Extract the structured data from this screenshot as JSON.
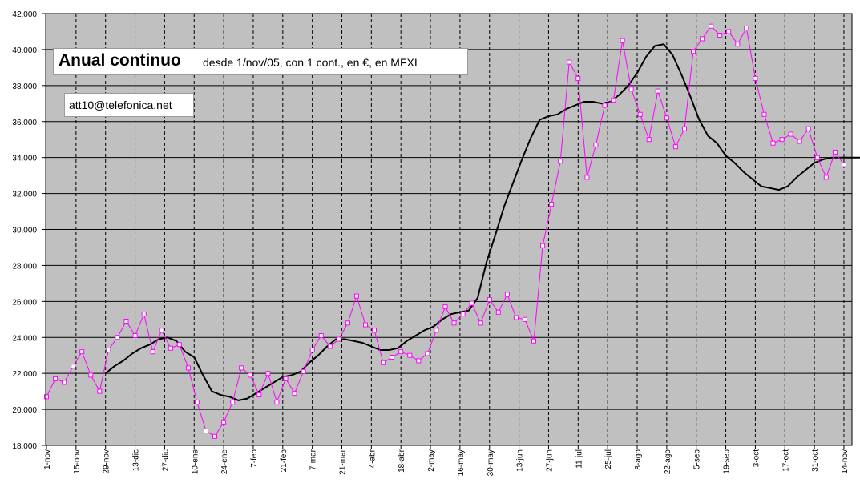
{
  "annotations": {
    "title_main": "Anual continuo",
    "title_sub": "desde 1/nov/05, con  1 cont., en €, en MFXI",
    "email": "att10@telefonica.net"
  },
  "colors": {
    "plot_bg": "#c0c0c0",
    "price_line": "#ff00ff",
    "price_marker_fill": "#ffffff",
    "avg_line": "#000000",
    "grid": "#000000"
  },
  "chart_data": {
    "type": "line",
    "title": "Anual continuo",
    "subtitle": "desde 1/nov/05, con  1 cont., en €, en MFXI",
    "xlabel": "",
    "ylabel": "",
    "ylim": [
      18000,
      42000
    ],
    "yticks": [
      18000,
      20000,
      22000,
      24000,
      26000,
      28000,
      30000,
      32000,
      34000,
      36000,
      38000,
      40000,
      42000
    ],
    "ytick_labels": [
      "18.000",
      "20.000",
      "22.000",
      "24.000",
      "26.000",
      "28.000",
      "30.000",
      "32.000",
      "34.000",
      "36.000",
      "38.000",
      "40.000",
      "42.000"
    ],
    "xtick_labels": [
      "1-nov",
      "15-nov",
      "29-nov",
      "13-dic",
      "27-dic",
      "10-ene",
      "24-ene",
      "7-feb",
      "21-feb",
      "7-mar",
      "21-mar",
      "4-abr",
      "18-abr",
      "2-may",
      "16-may",
      "30-may",
      "13-jun",
      "27-jun",
      "11-jul",
      "25-jul",
      "8-ago",
      "22-ago",
      "5-sep",
      "19-sep",
      "3-oct",
      "17-oct",
      "31-oct",
      "14-nov"
    ],
    "x_range": [
      0,
      28
    ],
    "grid": {
      "horizontal": true,
      "vertical": true,
      "vertical_style": "dashed"
    },
    "legend": "none",
    "series": [
      {
        "style": "line-markers",
        "x": [
          0,
          0.3,
          0.6,
          0.9,
          1.2,
          1.5,
          1.8,
          2.1,
          2.4,
          2.7,
          3,
          3.3,
          3.6,
          3.9,
          4.2,
          4.5,
          4.8,
          5.1,
          5.4,
          5.7,
          6,
          6.3,
          6.6,
          6.9,
          7.2,
          7.5,
          7.8,
          8.1,
          8.4,
          8.7,
          9,
          9.3,
          9.6,
          9.9,
          10.2,
          10.5,
          10.8,
          11.1,
          11.4,
          11.7,
          12,
          12.3,
          12.6,
          12.9,
          13.2,
          13.5,
          13.8,
          14.1,
          14.4,
          14.7,
          15,
          15.3,
          15.6,
          15.9,
          16.2,
          16.5,
          16.8,
          17.1,
          17.4,
          17.7,
          18,
          18.3,
          18.6,
          18.9,
          19.2,
          19.5,
          19.8,
          20.1,
          20.4,
          20.7,
          21,
          21.3,
          21.6,
          21.9,
          22.2,
          22.5,
          22.8,
          23.1,
          23.4,
          23.7,
          24,
          24.3,
          24.6,
          24.9,
          25.2,
          25.5,
          25.8,
          26.1,
          26.4,
          26.7,
          27
        ],
        "values": [
          20700,
          21700,
          21500,
          22400,
          23200,
          21900,
          21000,
          23300,
          24000,
          24900,
          24100,
          25300,
          23200,
          24400,
          23400,
          23600,
          22300,
          20400,
          18800,
          18500,
          19300,
          20400,
          22300,
          21900,
          20800,
          22000,
          20400,
          21700,
          20900,
          22100,
          23300,
          24100,
          23500,
          23900,
          24800,
          26300,
          24700,
          24400,
          22600,
          22900,
          23200,
          23000,
          22700,
          23100,
          24400,
          25700,
          24800,
          25300,
          25900,
          24800,
          26100,
          25400,
          26400,
          25100,
          25000,
          23800,
          29100,
          31400,
          33800,
          39300,
          38400,
          32900,
          34700,
          36900,
          37200,
          40500,
          37800,
          36400,
          35000,
          37700,
          36200,
          34600,
          35600,
          39900,
          40600,
          41300,
          40800,
          41000,
          40300,
          41200,
          38400,
          36400,
          34800,
          35000,
          35300,
          34900,
          35600,
          34000,
          32900,
          34300,
          33600
        ]
      },
      {
        "style": "line",
        "x": [
          2,
          2.3,
          2.6,
          2.9,
          3.2,
          3.5,
          3.8,
          4.1,
          4.4,
          4.7,
          5,
          5.3,
          5.6,
          5.9,
          6.2,
          6.5,
          6.8,
          7.1,
          7.4,
          7.7,
          8,
          8.3,
          8.6,
          8.9,
          9.2,
          9.5,
          9.8,
          10.1,
          10.4,
          10.7,
          11,
          11.3,
          11.6,
          11.9,
          12.2,
          12.5,
          12.8,
          13.1,
          13.4,
          13.7,
          14,
          14.3,
          14.6,
          14.9,
          15.2,
          15.5,
          15.8,
          16.1,
          16.4,
          16.7,
          17,
          17.3,
          17.6,
          17.9,
          18.2,
          18.5,
          18.8,
          19.1,
          19.4,
          19.7,
          20,
          20.3,
          20.6,
          20.9,
          21.2,
          21.5,
          21.8,
          22.1,
          22.4,
          22.7,
          23,
          23.3,
          23.6,
          23.9,
          24.2,
          24.5,
          24.8,
          25.1,
          25.4,
          25.7,
          26,
          26.3,
          26.6,
          26.9,
          27.2,
          27.5,
          27.8,
          28
        ],
        "values": [
          22000,
          22400,
          22700,
          23100,
          23400,
          23600,
          23900,
          24000,
          23800,
          23200,
          22900,
          21900,
          21000,
          20800,
          20700,
          20500,
          20600,
          20900,
          21200,
          21500,
          21800,
          21900,
          22100,
          22600,
          23000,
          23500,
          23900,
          23900,
          23800,
          23700,
          23500,
          23300,
          23300,
          23400,
          23800,
          24100,
          24400,
          24600,
          25000,
          25300,
          25400,
          25500,
          26200,
          28200,
          29700,
          31300,
          32600,
          33900,
          35100,
          36100,
          36300,
          36400,
          36700,
          36900,
          37100,
          37100,
          37000,
          37100,
          37500,
          38000,
          38700,
          39600,
          40200,
          40300,
          39700,
          38600,
          37400,
          36100,
          35200,
          34800,
          34100,
          33700,
          33200,
          32800,
          32400,
          32300,
          32200,
          32400,
          32900,
          33300,
          33700,
          33900,
          34000,
          34000,
          34000,
          34000,
          34000,
          34000
        ]
      }
    ]
  }
}
